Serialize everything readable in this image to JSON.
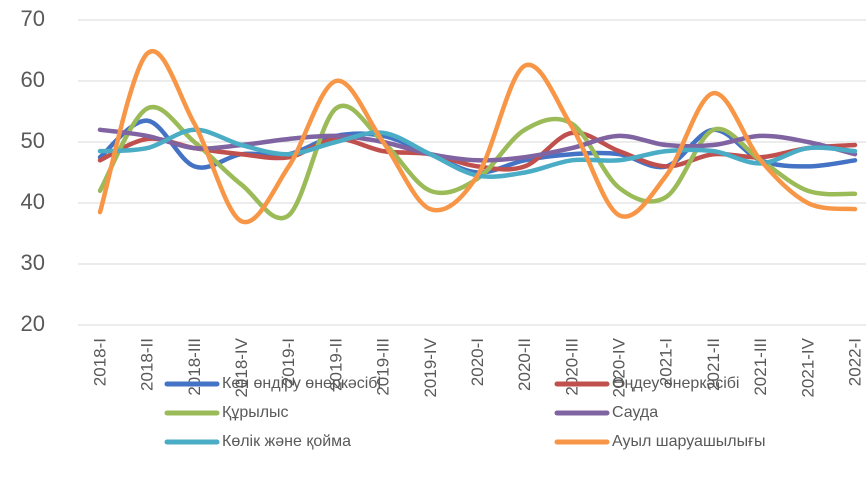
{
  "chart_data": {
    "type": "line",
    "smooth": true,
    "categories": [
      "2018-I",
      "2018-II",
      "2018-III",
      "2018-IV",
      "2019-I",
      "2019-II",
      "2019-III",
      "2019-IV",
      "2020-I",
      "2020-II",
      "2020-III",
      "2020-IV",
      "2021-I",
      "2021-II",
      "2021-III",
      "2021-IV",
      "2022-I"
    ],
    "ylim": [
      20,
      70
    ],
    "yticks": [
      20,
      30,
      40,
      50,
      60,
      70
    ],
    "grid": true,
    "legend": "bottom",
    "series": [
      {
        "name": "Кен өндіру өнеркәсібі",
        "color": "#4472c4",
        "values": [
          47.5,
          53.5,
          46,
          48,
          48,
          51,
          51,
          48,
          45,
          47,
          48,
          48,
          46,
          52,
          47,
          46,
          47
        ]
      },
      {
        "name": "Өңдеу өнеркәсібі",
        "color": "#c0504d",
        "values": [
          47,
          50.5,
          49,
          48,
          47.5,
          50.5,
          48.5,
          48,
          46,
          46,
          51.5,
          48.5,
          46,
          48,
          47.5,
          49,
          49.5
        ]
      },
      {
        "name": "Құрылыс",
        "color": "#9bbb59",
        "values": [
          42,
          55.5,
          50,
          43,
          38,
          55.5,
          50,
          42,
          44,
          52,
          53,
          42.5,
          41,
          52,
          47,
          42,
          41.5
        ]
      },
      {
        "name": "Сауда",
        "color": "#8064a2",
        "values": [
          52,
          51,
          49,
          49.5,
          50.5,
          51,
          50,
          48,
          47,
          47.5,
          49,
          51,
          49.5,
          49.5,
          51,
          50,
          48
        ]
      },
      {
        "name": "Көлік және қойма",
        "color": "#4bacc6",
        "values": [
          48.5,
          49,
          52,
          49.5,
          48,
          50,
          51.5,
          48,
          44.5,
          45,
          47,
          47,
          48.5,
          48.5,
          46.5,
          49,
          48.5
        ]
      },
      {
        "name": "Ауыл шаруашылығы",
        "color": "#f79646",
        "values": [
          38.5,
          64.5,
          53,
          37,
          46,
          60,
          50,
          39,
          44.5,
          62.5,
          52.5,
          38,
          44.5,
          58,
          47,
          40,
          39
        ]
      }
    ]
  }
}
